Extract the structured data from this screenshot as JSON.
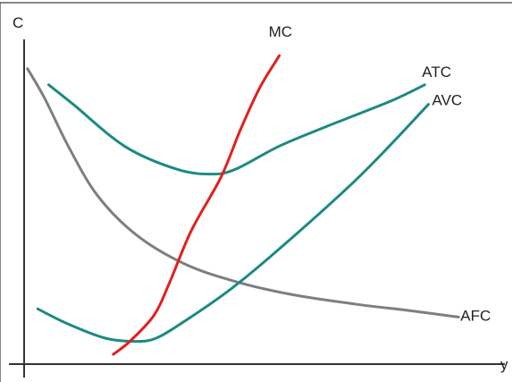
{
  "chart_data": {
    "type": "line",
    "xlabel": "y",
    "ylabel": "C",
    "xlim": [
      0,
      100
    ],
    "ylim": [
      0,
      100
    ],
    "grid": false,
    "legend": "none",
    "series": [
      {
        "name": "MC",
        "color": "#e0201e",
        "points": [
          [
            18.9,
            3
          ],
          [
            22.4,
            7
          ],
          [
            27.5,
            15
          ],
          [
            30.8,
            25
          ],
          [
            35.4,
            41
          ],
          [
            41.7,
            57.5
          ],
          [
            45.8,
            72
          ],
          [
            49.9,
            85
          ],
          [
            54.1,
            95
          ]
        ]
      },
      {
        "name": "ATC",
        "color": "#1b8a83",
        "points": [
          [
            5.2,
            86
          ],
          [
            10.4,
            80
          ],
          [
            21.4,
            67
          ],
          [
            32.4,
            60
          ],
          [
            39.7,
            58.5
          ],
          [
            44.8,
            60
          ],
          [
            53.9,
            67
          ],
          [
            63.8,
            73
          ],
          [
            77.7,
            81
          ],
          [
            84.9,
            86
          ]
        ]
      },
      {
        "name": "AVC",
        "color": "#1b8a83",
        "points": [
          [
            2.9,
            17
          ],
          [
            9.1,
            12.5
          ],
          [
            17.2,
            8
          ],
          [
            23.6,
            7
          ],
          [
            28.0,
            8
          ],
          [
            33.8,
            13
          ],
          [
            42.8,
            22
          ],
          [
            52.1,
            33
          ],
          [
            67.6,
            53
          ],
          [
            76.0,
            65
          ],
          [
            85.7,
            80
          ]
        ]
      },
      {
        "name": "AFC",
        "color": "#7f7f7f",
        "points": [
          [
            0.7,
            91
          ],
          [
            4.3,
            82
          ],
          [
            9.4,
            67
          ],
          [
            15.5,
            52
          ],
          [
            23.6,
            40
          ],
          [
            33.8,
            31
          ],
          [
            44.6,
            25.5
          ],
          [
            56.5,
            21.5
          ],
          [
            70.0,
            18.5
          ],
          [
            81.6,
            16.5
          ],
          [
            92.1,
            14.5
          ]
        ]
      }
    ]
  }
}
